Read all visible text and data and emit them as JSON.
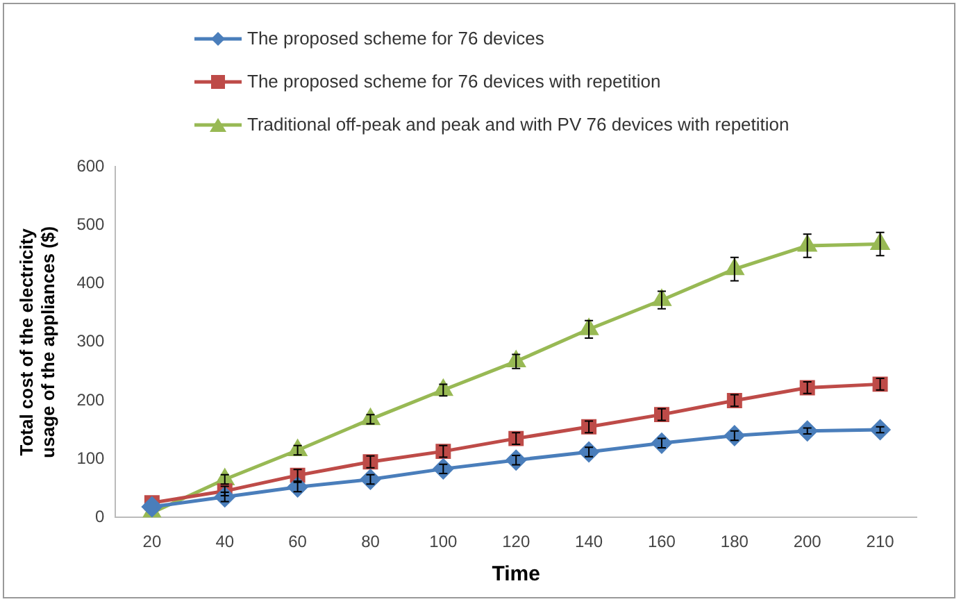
{
  "chart_data": {
    "type": "line",
    "xlabel": "Time",
    "ylabel": "Total cost of the electricity usage of the appliances ($)",
    "categories": [
      "20",
      "40",
      "60",
      "80",
      "100",
      "120",
      "140",
      "160",
      "180",
      "200",
      "210"
    ],
    "series": [
      {
        "name": "The proposed scheme for 76 devices",
        "color": "#4a7ebb",
        "marker": "diamond",
        "values": [
          18,
          35,
          52,
          65,
          83,
          98,
          112,
          127,
          140,
          148,
          150
        ],
        "errors": [
          null,
          8,
          8,
          8,
          8,
          8,
          8,
          8,
          8,
          5,
          5
        ]
      },
      {
        "name": "The proposed scheme for 76 devices with repetition",
        "color": "#be4b48",
        "marker": "square",
        "values": [
          25,
          45,
          72,
          95,
          113,
          135,
          155,
          176,
          200,
          222,
          228
        ],
        "errors": [
          null,
          8,
          10,
          10,
          10,
          10,
          10,
          10,
          10,
          10,
          10
        ]
      },
      {
        "name": "Traditional off-peak and peak and with PV 76 devices with repetition",
        "color": "#98b954",
        "marker": "triangle",
        "values": [
          8,
          65,
          115,
          168,
          218,
          267,
          322,
          372,
          425,
          465,
          468
        ],
        "errors": [
          null,
          8,
          8,
          8,
          10,
          12,
          15,
          15,
          20,
          20,
          20
        ]
      }
    ],
    "ylim": [
      0,
      600
    ],
    "yticks": [
      0,
      100,
      200,
      300,
      400,
      500,
      600
    ],
    "grid": false,
    "legend": "top"
  }
}
